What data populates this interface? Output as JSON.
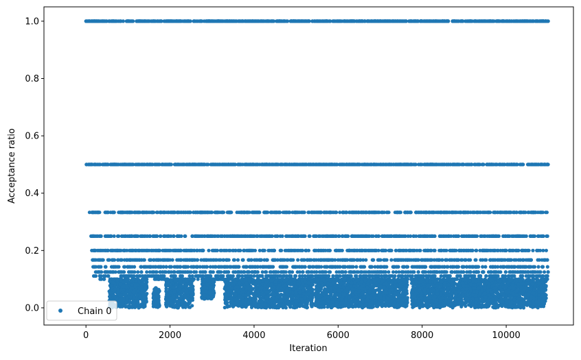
{
  "chart_data": {
    "type": "scatter",
    "title": "",
    "xlabel": "Iteration",
    "ylabel": "Acceptance ratio",
    "xlim": [
      -1000,
      11600
    ],
    "ylim": [
      -0.06,
      1.05
    ],
    "xticks": [
      0,
      2000,
      4000,
      6000,
      8000,
      10000
    ],
    "xtick_labels": [
      "0",
      "2000",
      "4000",
      "6000",
      "8000",
      "10000"
    ],
    "yticks": [
      0.0,
      0.2,
      0.4,
      0.6,
      0.8,
      1.0
    ],
    "ytick_labels": [
      "0.0",
      "0.2",
      "0.4",
      "0.6",
      "0.8",
      "1.0"
    ],
    "grid": false,
    "legend": {
      "position": "lower-left",
      "entries": [
        "Chain 0"
      ]
    },
    "series": [
      {
        "name": "Chain 0",
        "color": "#1f77b4",
        "marker": "circle",
        "x_range": [
          0,
          11000
        ],
        "discrete_levels": [
          1.0,
          0.5,
          0.333,
          0.25,
          0.2,
          0.167,
          0.143,
          0.125,
          0.111,
          0.1
        ],
        "continuous_band": [
          0.0,
          0.1
        ],
        "low_value_clusters": [
          {
            "x": [
              550,
              1450
            ],
            "y": [
              0.0,
              0.1
            ]
          },
          {
            "x": [
              1600,
              1750
            ],
            "y": [
              0.0,
              0.07
            ]
          },
          {
            "x": [
              1900,
              2550
            ],
            "y": [
              0.0,
              0.1
            ]
          },
          {
            "x": [
              2750,
              3050
            ],
            "y": [
              0.03,
              0.1
            ]
          },
          {
            "x": [
              3300,
              5400
            ],
            "y": [
              0.0,
              0.1
            ]
          },
          {
            "x": [
              5450,
              7650
            ],
            "y": [
              0.0,
              0.1
            ]
          },
          {
            "x": [
              7750,
              8950
            ],
            "y": [
              0.0,
              0.1
            ]
          },
          {
            "x": [
              8950,
              10950
            ],
            "y": [
              0.0,
              0.1
            ]
          }
        ]
      }
    ]
  }
}
